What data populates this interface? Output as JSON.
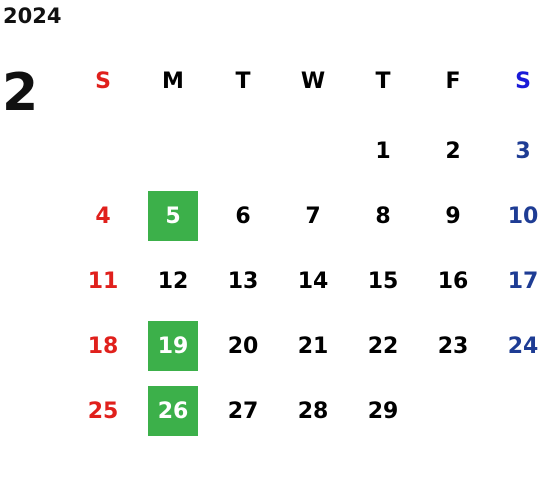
{
  "year": "2024",
  "month": "2",
  "weekdays": [
    "S",
    "M",
    "T",
    "W",
    "T",
    "F",
    "S"
  ],
  "weeks": [
    [
      null,
      null,
      null,
      null,
      1,
      2,
      3
    ],
    [
      4,
      5,
      6,
      7,
      8,
      9,
      10
    ],
    [
      11,
      12,
      13,
      14,
      15,
      16,
      17
    ],
    [
      18,
      19,
      20,
      21,
      22,
      23,
      24
    ],
    [
      25,
      26,
      27,
      28,
      29,
      null,
      null
    ]
  ],
  "highlighted_days": [
    5,
    19,
    26
  ]
}
